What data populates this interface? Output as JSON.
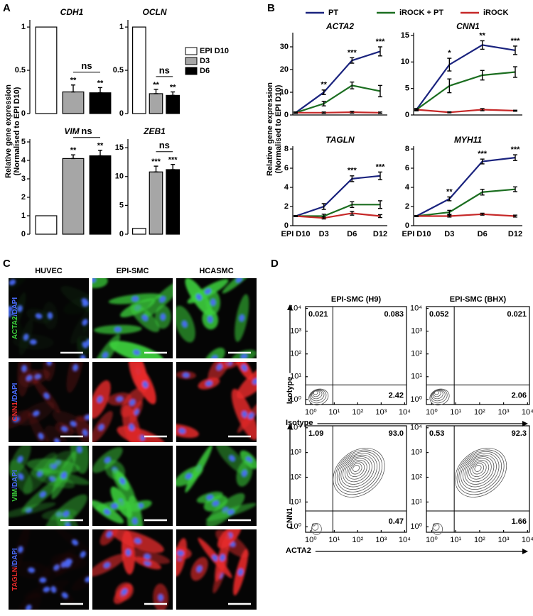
{
  "panels": [
    "A",
    "B",
    "C",
    "D"
  ],
  "chart_data": [
    {
      "type": "bar",
      "title": "CDH1",
      "values": [
        1,
        0.25,
        0.24
      ],
      "errors": [
        null,
        0.08,
        0.06
      ],
      "colors": [
        "#ffffff",
        "#a6a6a6",
        "#000000"
      ],
      "ylim": [
        0,
        1.05
      ],
      "yticks": [
        0,
        0.5,
        1
      ],
      "significance": [
        null,
        "**",
        "**"
      ],
      "bracket": "ns",
      "ylabel": [
        "Relative gene expression",
        "(Normalised to EPI D10)"
      ]
    },
    {
      "type": "bar",
      "title": "OCLN",
      "categories": [
        "EPI D10",
        "D3",
        "D6"
      ],
      "values": [
        1,
        0.23,
        0.21
      ],
      "errors": [
        null,
        0.05,
        0.04
      ],
      "colors": [
        "#ffffff",
        "#a6a6a6",
        "#000000"
      ],
      "ylim": [
        0,
        1.05
      ],
      "yticks": [
        0,
        0.5,
        1
      ],
      "significance": [
        null,
        "**",
        "**"
      ],
      "bracket": "ns",
      "legend": "right"
    },
    {
      "type": "bar",
      "title": "VIM",
      "values": [
        1,
        4.1,
        4.25
      ],
      "errors": [
        null,
        0.2,
        0.3
      ],
      "colors": [
        "#ffffff",
        "#a6a6a6",
        "#000000"
      ],
      "ylim": [
        0,
        5
      ],
      "yticks": [
        0,
        1,
        2,
        3,
        4,
        5
      ],
      "significance": [
        null,
        "**",
        "**"
      ],
      "bracket": "ns"
    },
    {
      "type": "bar",
      "title": "ZEB1",
      "values": [
        1,
        10.8,
        11.2
      ],
      "errors": [
        null,
        1,
        0.9
      ],
      "colors": [
        "#ffffff",
        "#a6a6a6",
        "#000000"
      ],
      "ylim": [
        0,
        16
      ],
      "yticks": [
        0,
        5,
        10,
        15
      ],
      "significance": [
        null,
        "***",
        "***"
      ],
      "bracket": "ns"
    },
    {
      "type": "line",
      "title": "ACTA2",
      "legend": "top",
      "ylim": [
        0,
        35
      ],
      "yticks": [
        0,
        10,
        20,
        30
      ],
      "ylabel": [
        "Relative gene expression",
        "(Normalised to EPI D10)"
      ],
      "significance": [
        null,
        "**",
        "***",
        "***"
      ],
      "series": [
        {
          "name": "PT",
          "color": "#1a237e",
          "values": [
            1,
            10,
            24,
            28
          ],
          "errors": [
            0.3,
            1,
            1.2,
            2
          ]
        },
        {
          "name": "iROCK + PT",
          "color": "#1b6e20",
          "values": [
            1,
            5,
            13,
            10.5
          ],
          "errors": [
            0.3,
            1,
            1.5,
            2.5
          ]
        },
        {
          "name": "iROCK",
          "color": "#c62828",
          "values": [
            1,
            1,
            1.2,
            1
          ],
          "errors": [
            0.2,
            0.3,
            0.4,
            0.3
          ]
        }
      ]
    },
    {
      "type": "line",
      "title": "CNN1",
      "ylim": [
        0,
        15
      ],
      "yticks": [
        0,
        5,
        10,
        15
      ],
      "significance": [
        null,
        "*",
        "**",
        "***"
      ],
      "series": [
        {
          "color": "#1a237e",
          "values": [
            1,
            9.5,
            13.2,
            12.2
          ],
          "errors": [
            0.2,
            1.2,
            0.8,
            0.8
          ]
        },
        {
          "color": "#1b6e20",
          "values": [
            1,
            5.5,
            7.5,
            8.1
          ],
          "errors": [
            0.2,
            1.3,
            0.9,
            1
          ]
        },
        {
          "color": "#c62828",
          "values": [
            1,
            0.5,
            1,
            0.8
          ],
          "errors": [
            0.1,
            0.1,
            0.2,
            0.1
          ]
        }
      ]
    },
    {
      "type": "line",
      "title": "TAGLN",
      "categories": [
        "EPI D10",
        "D3",
        "D6",
        "D12"
      ],
      "ylim": [
        0,
        8
      ],
      "yticks": [
        0,
        2,
        4,
        6,
        8
      ],
      "significance": [
        null,
        null,
        "***",
        "***"
      ],
      "series": [
        {
          "color": "#1a237e",
          "values": [
            1,
            2,
            4.9,
            5.2
          ],
          "errors": [
            0.05,
            0.3,
            0.3,
            0.4
          ]
        },
        {
          "color": "#1b6e20",
          "values": [
            1,
            1,
            2.2,
            2.2
          ],
          "errors": [
            0.05,
            0.2,
            0.3,
            0.4
          ]
        },
        {
          "color": "#c62828",
          "values": [
            1,
            0.8,
            1.3,
            1
          ],
          "errors": [
            0.05,
            0.1,
            0.2,
            0.15
          ]
        }
      ]
    },
    {
      "type": "line",
      "title": "MYH11",
      "categories": [
        "EPI D10",
        "D3",
        "D6",
        "D12"
      ],
      "ylim": [
        0,
        8
      ],
      "yticks": [
        0,
        2,
        4,
        6,
        8
      ],
      "significance": [
        null,
        "**",
        "***",
        "***"
      ],
      "series": [
        {
          "color": "#1a237e",
          "values": [
            1,
            2.8,
            6.7,
            7.1
          ],
          "errors": [
            0.05,
            0.2,
            0.25,
            0.3
          ]
        },
        {
          "color": "#1b6e20",
          "values": [
            1,
            1.4,
            3.5,
            3.8
          ],
          "errors": [
            0.05,
            0.2,
            0.3,
            0.25
          ]
        },
        {
          "color": "#c62828",
          "values": [
            1,
            1,
            1.2,
            1
          ],
          "errors": [
            0.05,
            0.1,
            0.1,
            0.1
          ]
        }
      ]
    },
    {
      "type": "contour",
      "title": "EPI-SMC (H9)",
      "xlabel": "Isotype",
      "ylabel": "Isotype",
      "log_scale": true,
      "color": "#555555",
      "xlim": [
        0.6,
        12000
      ],
      "ylim": [
        0.6,
        12000
      ],
      "xticks": [
        {
          "value": 1,
          "label": "10⁰"
        },
        {
          "value": 10,
          "label": "10¹"
        },
        {
          "value": 100,
          "label": "10²"
        },
        {
          "value": 1000,
          "label": "10³"
        },
        {
          "value": 10000,
          "label": "10⁴"
        }
      ],
      "yticks": [
        {
          "value": 1,
          "label": "10⁰"
        },
        {
          "value": 10,
          "label": "10¹"
        },
        {
          "value": 100,
          "label": "10²"
        },
        {
          "value": 1000,
          "label": "10³"
        },
        {
          "value": 10000,
          "label": "10⁴"
        }
      ],
      "quadrants": {
        "values": [
          0.021,
          0.083,
          2.42
        ]
      }
    },
    {
      "type": "contour",
      "title": "EPI-SMC (BHX)",
      "log_scale": true,
      "color": "#555555",
      "xlim": [
        0.6,
        12000
      ],
      "ylim": [
        0.6,
        12000
      ],
      "xticks": [
        {
          "value": 1,
          "label": "10⁰"
        },
        {
          "value": 10,
          "label": "10¹"
        },
        {
          "value": 100,
          "label": "10²"
        },
        {
          "value": 1000,
          "label": "10³"
        },
        {
          "value": 10000,
          "label": "10⁴"
        }
      ],
      "yticks": [
        {
          "value": 1,
          "label": "10⁰"
        },
        {
          "value": 10,
          "label": "10¹"
        },
        {
          "value": 100,
          "label": "10²"
        },
        {
          "value": 1000,
          "label": "10³"
        },
        {
          "value": 10000,
          "label": "10⁴"
        }
      ],
      "quadrants": {
        "values": [
          0.052,
          0.021,
          2.06
        ]
      }
    },
    {
      "type": "contour",
      "xlabel": "ACTA2",
      "ylabel": "CNN1",
      "log_scale": true,
      "color": "#555555",
      "xlim": [
        0.6,
        12000
      ],
      "ylim": [
        0.6,
        12000
      ],
      "xticks": [
        {
          "value": 1,
          "label": "10⁰"
        },
        {
          "value": 10,
          "label": "10¹"
        },
        {
          "value": 100,
          "label": "10²"
        },
        {
          "value": 1000,
          "label": "10³"
        },
        {
          "value": 10000,
          "label": "10⁴"
        }
      ],
      "yticks": [
        {
          "value": 1,
          "label": "10⁰"
        },
        {
          "value": 10,
          "label": "10¹"
        },
        {
          "value": 100,
          "label": "10²"
        },
        {
          "value": 1000,
          "label": "10³"
        },
        {
          "value": 10000,
          "label": "10⁴"
        }
      ],
      "quadrants": {
        "values": [
          1.09,
          93,
          0.47
        ],
        "value_labels": [
          "1.09",
          "93.0",
          "0.47"
        ]
      }
    },
    {
      "type": "contour",
      "log_scale": true,
      "color": "#555555",
      "xlim": [
        0.6,
        12000
      ],
      "ylim": [
        0.6,
        12000
      ],
      "xticks": [
        {
          "value": 1,
          "label": "10⁰"
        },
        {
          "value": 10,
          "label": "10¹"
        },
        {
          "value": 100,
          "label": "10²"
        },
        {
          "value": 1000,
          "label": "10³"
        },
        {
          "value": 10000,
          "label": "10⁴"
        }
      ],
      "yticks": [
        {
          "value": 1,
          "label": "10⁰"
        },
        {
          "value": 10,
          "label": "10¹"
        },
        {
          "value": 100,
          "label": "10²"
        },
        {
          "value": 1000,
          "label": "10³"
        },
        {
          "value": 10000,
          "label": "10⁴"
        }
      ],
      "quadrants": {
        "values": [
          0.53,
          92.3,
          1.66
        ]
      }
    }
  ],
  "microscopy": {
    "columns": [
      "HUVEC",
      "EPI-SMC",
      "HCASMC"
    ],
    "counter_color": "#4a6cff",
    "rows": [
      {
        "stain": "ACTA2",
        "counter": "/DAPI",
        "color": "#3ccf3c"
      },
      {
        "stain": "CNN1",
        "counter": "/DAPI",
        "color": "#e62a2a"
      },
      {
        "stain": "VIM",
        "counter": "/DAPI",
        "color": "#3ccf3c"
      },
      {
        "stain": "TAGLN",
        "counter": "/DAPI",
        "color": "#e62a2a"
      }
    ]
  }
}
